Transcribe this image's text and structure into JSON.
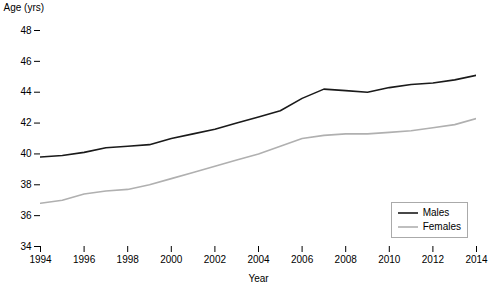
{
  "chart_data": {
    "type": "line",
    "x": [
      1994,
      1995,
      1996,
      1997,
      1998,
      1999,
      2000,
      2001,
      2002,
      2003,
      2004,
      2005,
      2006,
      2007,
      2008,
      2009,
      2010,
      2011,
      2012,
      2013,
      2014
    ],
    "series": [
      {
        "name": "Males",
        "color": "#1a1a1a",
        "values": [
          39.8,
          39.9,
          40.1,
          40.4,
          40.5,
          40.6,
          41.0,
          41.3,
          41.6,
          42.0,
          42.4,
          42.8,
          43.6,
          44.2,
          44.1,
          44.0,
          44.3,
          44.5,
          44.6,
          44.8,
          45.1
        ]
      },
      {
        "name": "Females",
        "color": "#b0b0b0",
        "values": [
          36.8,
          37.0,
          37.4,
          37.6,
          37.7,
          38.0,
          38.4,
          38.8,
          39.2,
          39.6,
          40.0,
          40.5,
          41.0,
          41.2,
          41.3,
          41.3,
          41.4,
          41.5,
          41.7,
          41.9,
          42.3
        ]
      }
    ],
    "xlabel": "Year",
    "ylabel": "Age (yrs)",
    "xlim": [
      1994,
      2014
    ],
    "xticks": [
      1994,
      1996,
      1998,
      2000,
      2002,
      2004,
      2006,
      2008,
      2010,
      2012,
      2014
    ],
    "ylim": [
      34,
      48
    ],
    "yticks": [
      34,
      36,
      38,
      40,
      42,
      44,
      46,
      48
    ],
    "grid": false,
    "legend": "lower right"
  }
}
